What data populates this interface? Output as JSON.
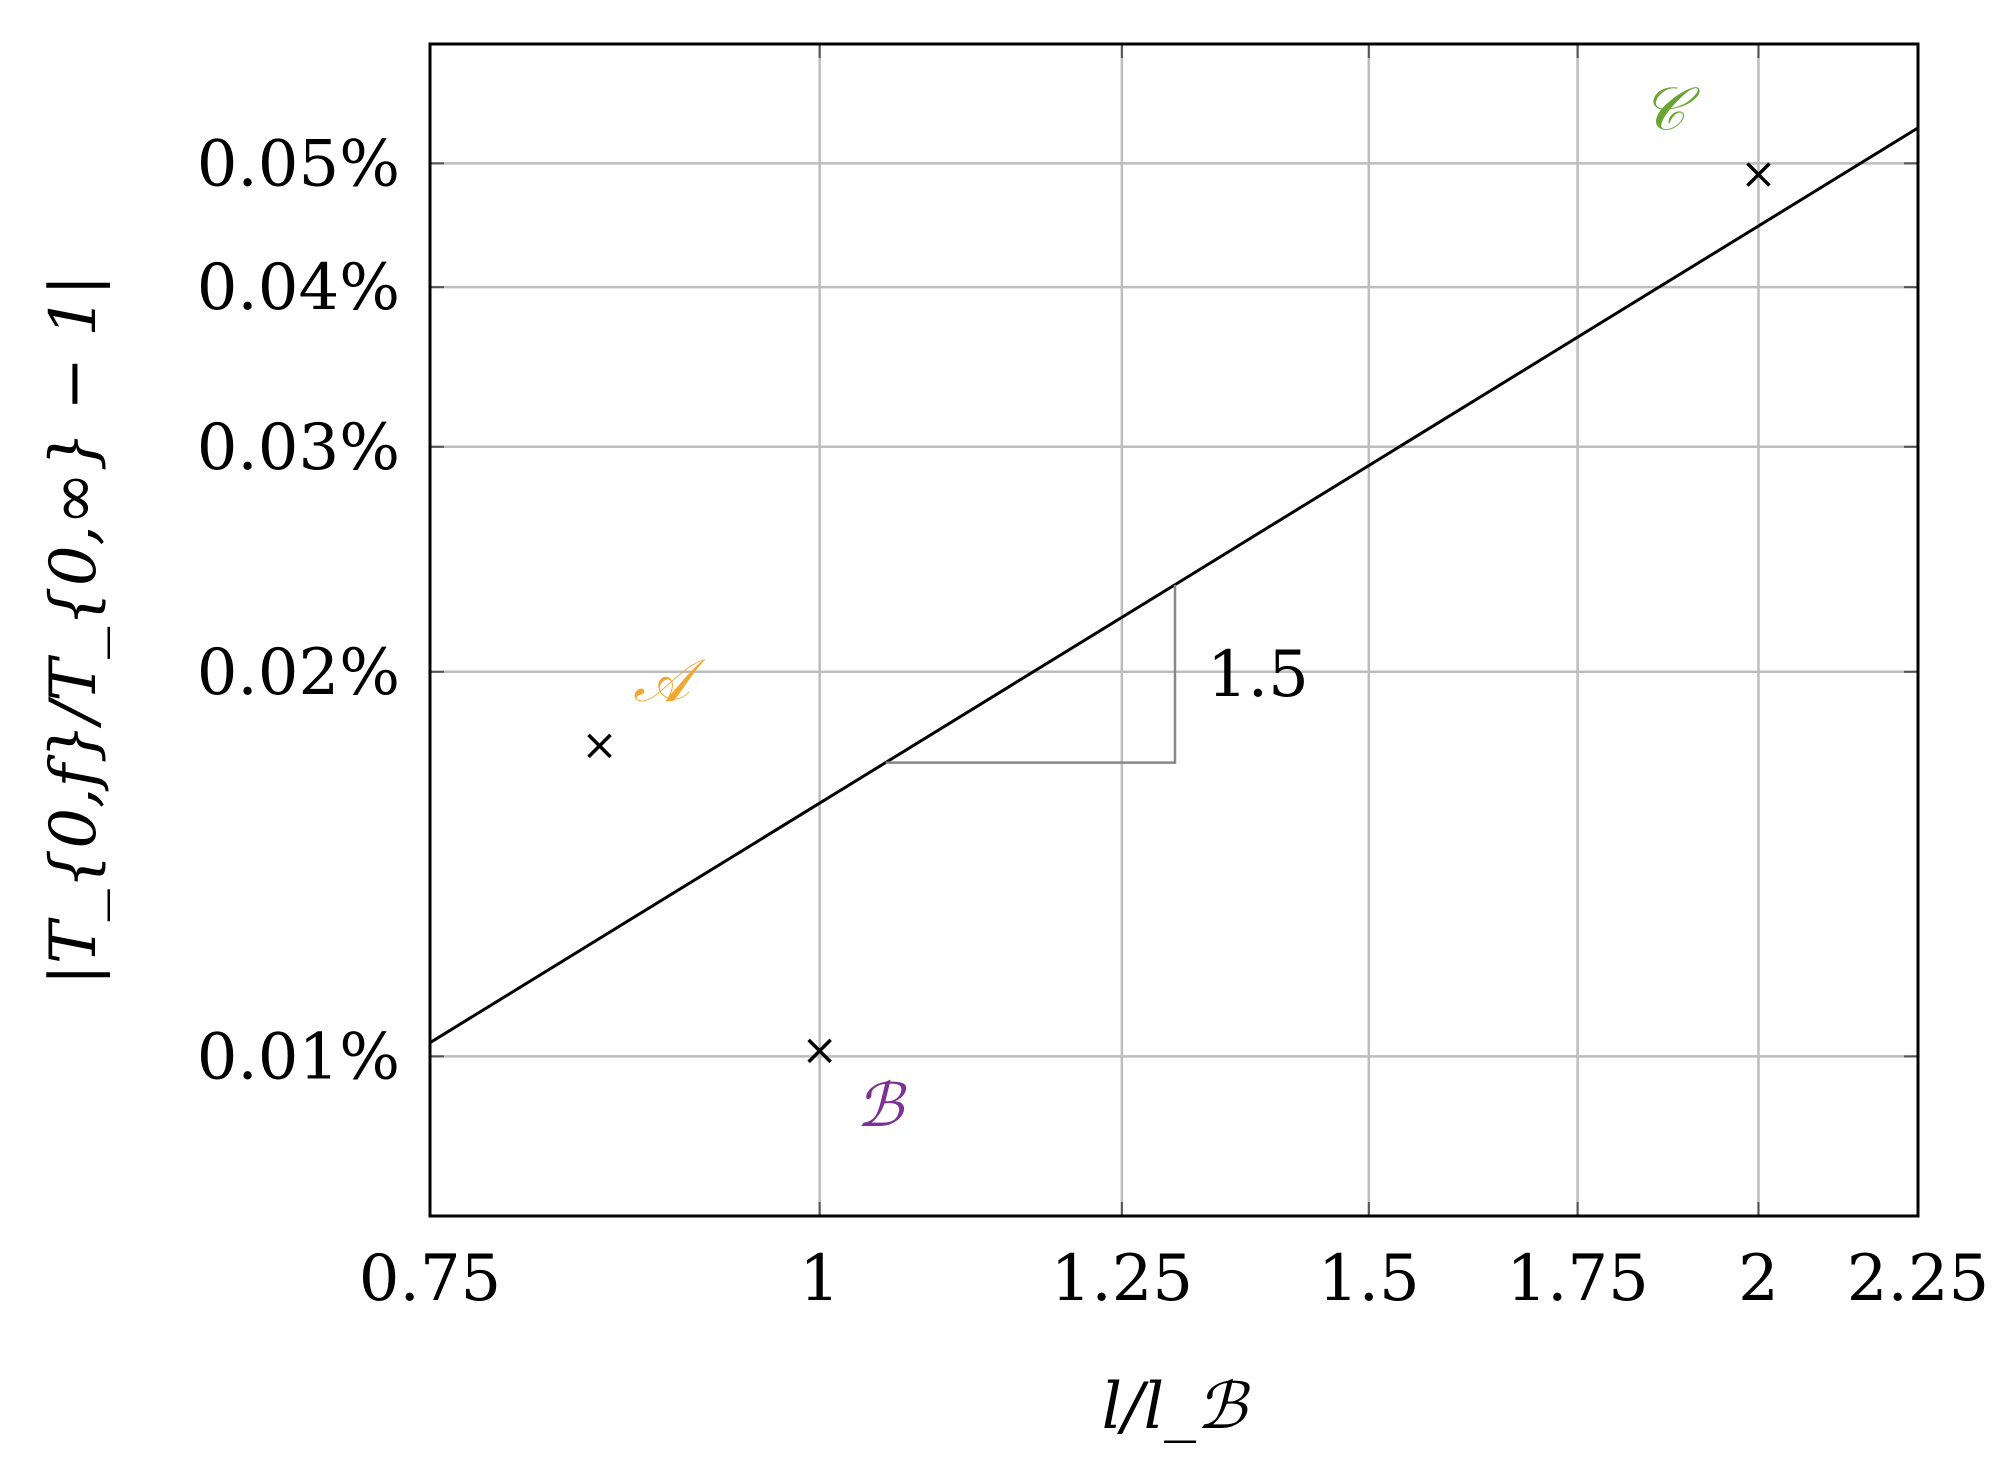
{
  "chart_data": {
    "type": "scatter",
    "title": "",
    "xlabel": "l/l_ℬ",
    "ylabel": "|T_{0,f}/T_{0,∞} − 1|",
    "xscale": "log",
    "yscale": "log",
    "xlim": [
      0.75,
      2.25
    ],
    "ylim": [
      0.0075,
      0.062
    ],
    "x_ticks": [
      {
        "value": 0.75,
        "label": "0.75"
      },
      {
        "value": 1,
        "label": "1"
      },
      {
        "value": 1.25,
        "label": "1.25"
      },
      {
        "value": 1.5,
        "label": "1.5"
      },
      {
        "value": 1.75,
        "label": "1.75"
      },
      {
        "value": 2,
        "label": "2"
      },
      {
        "value": 2.25,
        "label": "2.25"
      }
    ],
    "y_ticks": [
      {
        "value": 0.01,
        "label": "0.01%"
      },
      {
        "value": 0.02,
        "label": "0.02%"
      },
      {
        "value": 0.03,
        "label": "0.03%"
      },
      {
        "value": 0.04,
        "label": "0.04%"
      },
      {
        "value": 0.05,
        "label": "0.05%"
      }
    ],
    "grid": true,
    "points": [
      {
        "label": "𝒜",
        "x": 0.85,
        "y": 0.0175,
        "color": "#f0a830"
      },
      {
        "label": "ℬ",
        "x": 1.0,
        "y": 0.0101,
        "color": "#7b3294"
      },
      {
        "label": "𝒞",
        "x": 2.0,
        "y": 0.049,
        "color": "#6aa533"
      }
    ],
    "fit_line": {
      "slope": 1.5,
      "x": [
        0.75,
        2.25
      ],
      "y": [
        0.01025,
        0.0533
      ]
    },
    "slope_triangle": {
      "x": [
        1.05,
        1.3
      ],
      "label": "1.5"
    }
  }
}
